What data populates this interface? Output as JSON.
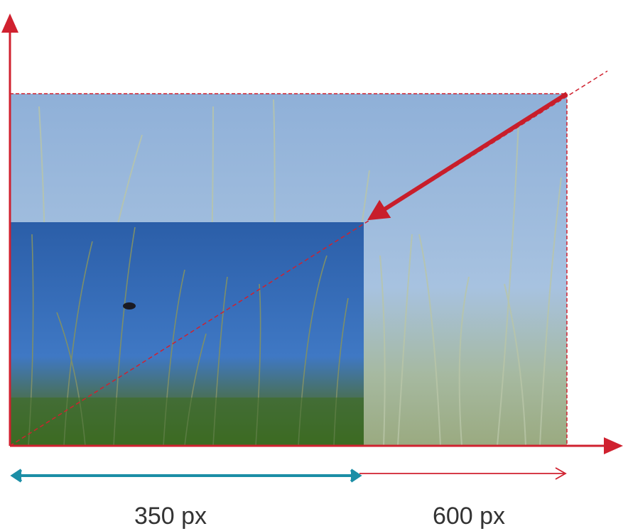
{
  "labels": {
    "small_width": "350 px",
    "large_width": "600 px"
  }
}
